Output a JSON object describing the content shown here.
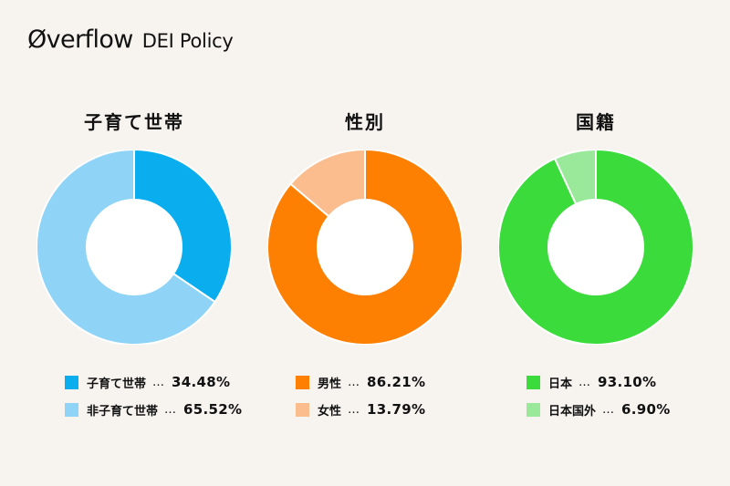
{
  "header": {
    "logo": "Øverflow",
    "subtitle": "DEI Policy"
  },
  "chart_data": [
    {
      "type": "pie",
      "title": "子育て世帯",
      "slices": [
        {
          "label": "子育て世帯",
          "value": 34.48,
          "display": "34.48%",
          "color": "#0aaeee"
        },
        {
          "label": "非子育て世帯",
          "value": 65.52,
          "display": "65.52%",
          "color": "#8fd3f6"
        }
      ]
    },
    {
      "type": "pie",
      "title": "性別",
      "slices": [
        {
          "label": "男性",
          "value": 86.21,
          "display": "86.21%",
          "color": "#fe8003"
        },
        {
          "label": "女性",
          "value": 13.79,
          "display": "13.79%",
          "color": "#fbbd8e"
        }
      ]
    },
    {
      "type": "pie",
      "title": "国籍",
      "slices": [
        {
          "label": "日本",
          "value": 93.1,
          "display": "93.10%",
          "color": "#3bdb3b"
        },
        {
          "label": "日本国外",
          "value": 6.9,
          "display": "6.90%",
          "color": "#9ae99a"
        }
      ]
    }
  ]
}
